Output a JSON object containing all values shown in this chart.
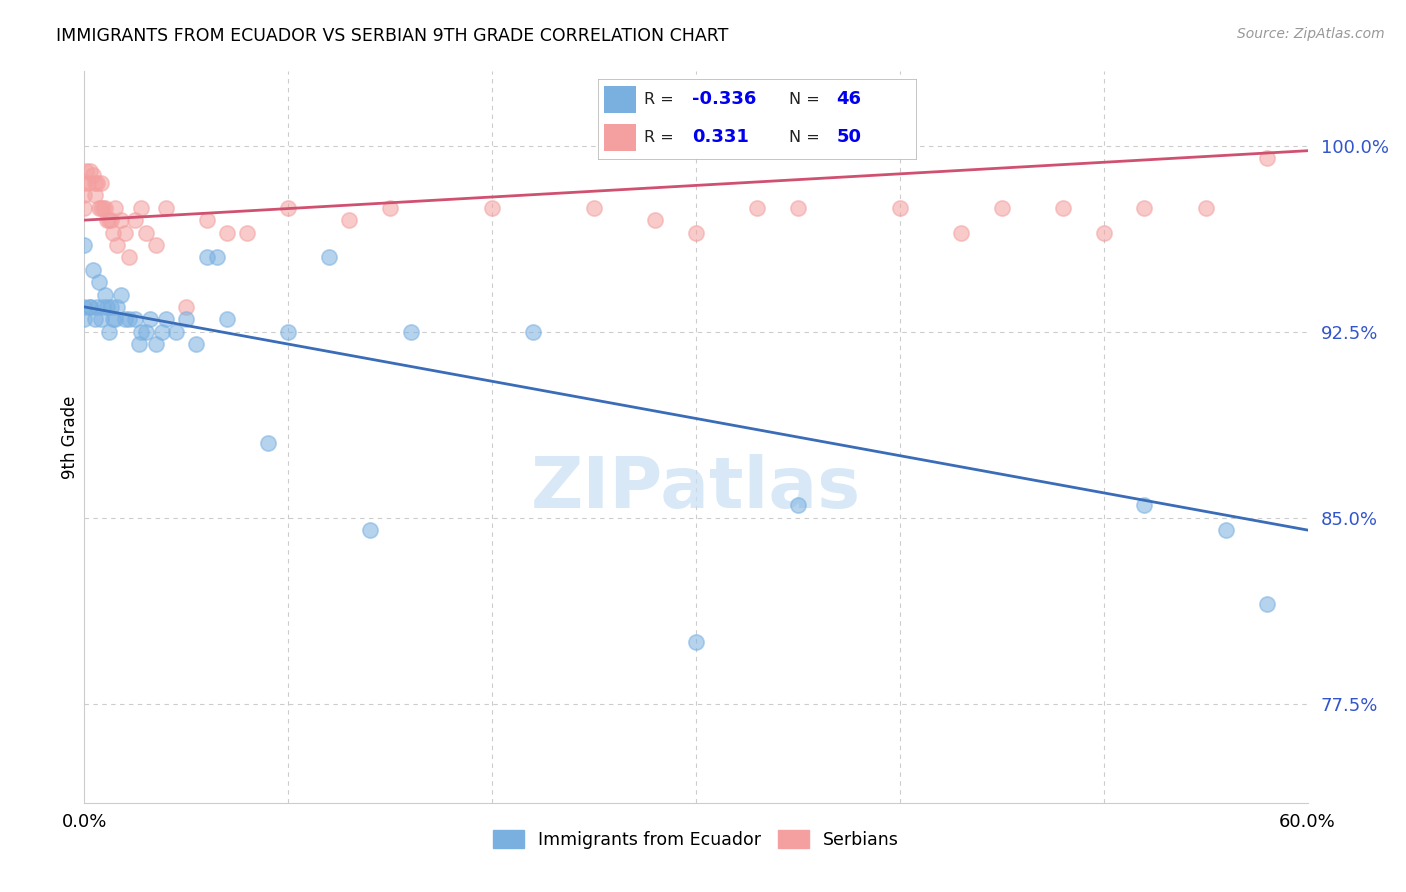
{
  "title": "IMMIGRANTS FROM ECUADOR VS SERBIAN 9TH GRADE CORRELATION CHART",
  "source": "Source: ZipAtlas.com",
  "ylabel": "9th Grade",
  "ytick_vals": [
    0.775,
    0.85,
    0.925,
    1.0
  ],
  "ytick_labels": [
    "77.5%",
    "85.0%",
    "92.5%",
    "100.0%"
  ],
  "xlim": [
    0.0,
    0.6
  ],
  "ylim": [
    0.735,
    1.03
  ],
  "blue_color": "#7ab0e0",
  "pink_color": "#f4a0a0",
  "blue_line_color": "#3a6cb8",
  "pink_line_color": "#d05070",
  "blue_R": "-0.336",
  "blue_N": "46",
  "pink_R": "0.331",
  "pink_N": "50",
  "blue_trendline": [
    0.935,
    0.845
  ],
  "pink_trendline": [
    0.97,
    0.998
  ],
  "blue_scatter_x": [
    0.0,
    0.0,
    0.0,
    0.003,
    0.003,
    0.004,
    0.005,
    0.006,
    0.007,
    0.008,
    0.009,
    0.01,
    0.011,
    0.012,
    0.013,
    0.014,
    0.015,
    0.016,
    0.018,
    0.02,
    0.022,
    0.025,
    0.027,
    0.028,
    0.03,
    0.032,
    0.035,
    0.038,
    0.04,
    0.045,
    0.05,
    0.055,
    0.06,
    0.065,
    0.07,
    0.09,
    0.1,
    0.12,
    0.14,
    0.16,
    0.22,
    0.3,
    0.35,
    0.52,
    0.56,
    0.58
  ],
  "blue_scatter_y": [
    0.96,
    0.935,
    0.93,
    0.935,
    0.935,
    0.95,
    0.93,
    0.935,
    0.945,
    0.93,
    0.935,
    0.94,
    0.935,
    0.925,
    0.935,
    0.93,
    0.93,
    0.935,
    0.94,
    0.93,
    0.93,
    0.93,
    0.92,
    0.925,
    0.925,
    0.93,
    0.92,
    0.925,
    0.93,
    0.925,
    0.93,
    0.92,
    0.955,
    0.955,
    0.93,
    0.88,
    0.925,
    0.955,
    0.845,
    0.925,
    0.925,
    0.8,
    0.855,
    0.855,
    0.845,
    0.815
  ],
  "pink_scatter_x": [
    0.0,
    0.0,
    0.0,
    0.001,
    0.002,
    0.003,
    0.004,
    0.005,
    0.005,
    0.006,
    0.007,
    0.008,
    0.008,
    0.009,
    0.01,
    0.011,
    0.012,
    0.013,
    0.014,
    0.015,
    0.016,
    0.018,
    0.02,
    0.022,
    0.025,
    0.028,
    0.03,
    0.035,
    0.04,
    0.05,
    0.06,
    0.07,
    0.08,
    0.1,
    0.13,
    0.15,
    0.2,
    0.25,
    0.28,
    0.3,
    0.33,
    0.35,
    0.4,
    0.43,
    0.45,
    0.48,
    0.5,
    0.52,
    0.55,
    0.58
  ],
  "pink_scatter_y": [
    0.985,
    0.98,
    0.975,
    0.99,
    0.985,
    0.99,
    0.988,
    0.985,
    0.98,
    0.985,
    0.975,
    0.985,
    0.975,
    0.975,
    0.975,
    0.97,
    0.97,
    0.97,
    0.965,
    0.975,
    0.96,
    0.97,
    0.965,
    0.955,
    0.97,
    0.975,
    0.965,
    0.96,
    0.975,
    0.935,
    0.97,
    0.965,
    0.965,
    0.975,
    0.97,
    0.975,
    0.975,
    0.975,
    0.97,
    0.965,
    0.975,
    0.975,
    0.975,
    0.965,
    0.975,
    0.975,
    0.965,
    0.975,
    0.975,
    0.995
  ],
  "watermark_text": "ZIPatlas",
  "watermark_color": "#c8dff5"
}
